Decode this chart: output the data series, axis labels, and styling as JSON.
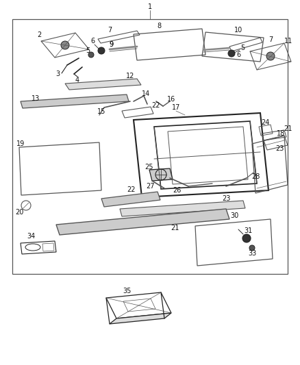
{
  "bg_color": "#ffffff",
  "line_color": "#555555",
  "dark_color": "#222222",
  "font_size": 7.0,
  "label_color": "#111111",
  "figsize": [
    4.38,
    5.33
  ],
  "dpi": 100
}
